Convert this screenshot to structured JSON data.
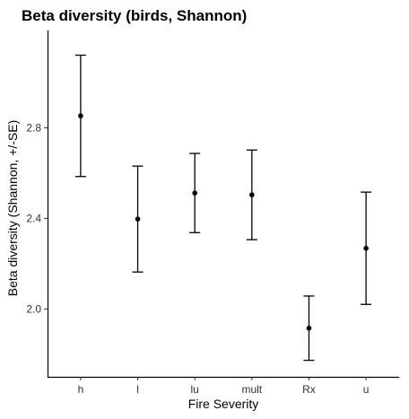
{
  "chart_data": {
    "type": "scatter",
    "title": "Beta diversity (birds, Shannon)",
    "xlabel": "Fire Severity",
    "ylabel": "Beta diversity (Shannon, +/-SE)",
    "categories": [
      "h",
      "l",
      "lu",
      "mult",
      "Rx",
      "u"
    ],
    "values": [
      2.853,
      2.397,
      2.512,
      2.504,
      1.915,
      2.268
    ],
    "lower": [
      2.585,
      2.163,
      2.337,
      2.306,
      1.773,
      2.02
    ],
    "upper": [
      3.121,
      2.631,
      2.687,
      2.702,
      2.057,
      2.516
    ],
    "yticks": [
      2.0,
      2.4,
      2.8
    ],
    "ytick_labels": [
      "2.0",
      "2.4",
      "2.8"
    ],
    "ylim": [
      1.7,
      3.23
    ],
    "grid": false,
    "legend": "none"
  }
}
